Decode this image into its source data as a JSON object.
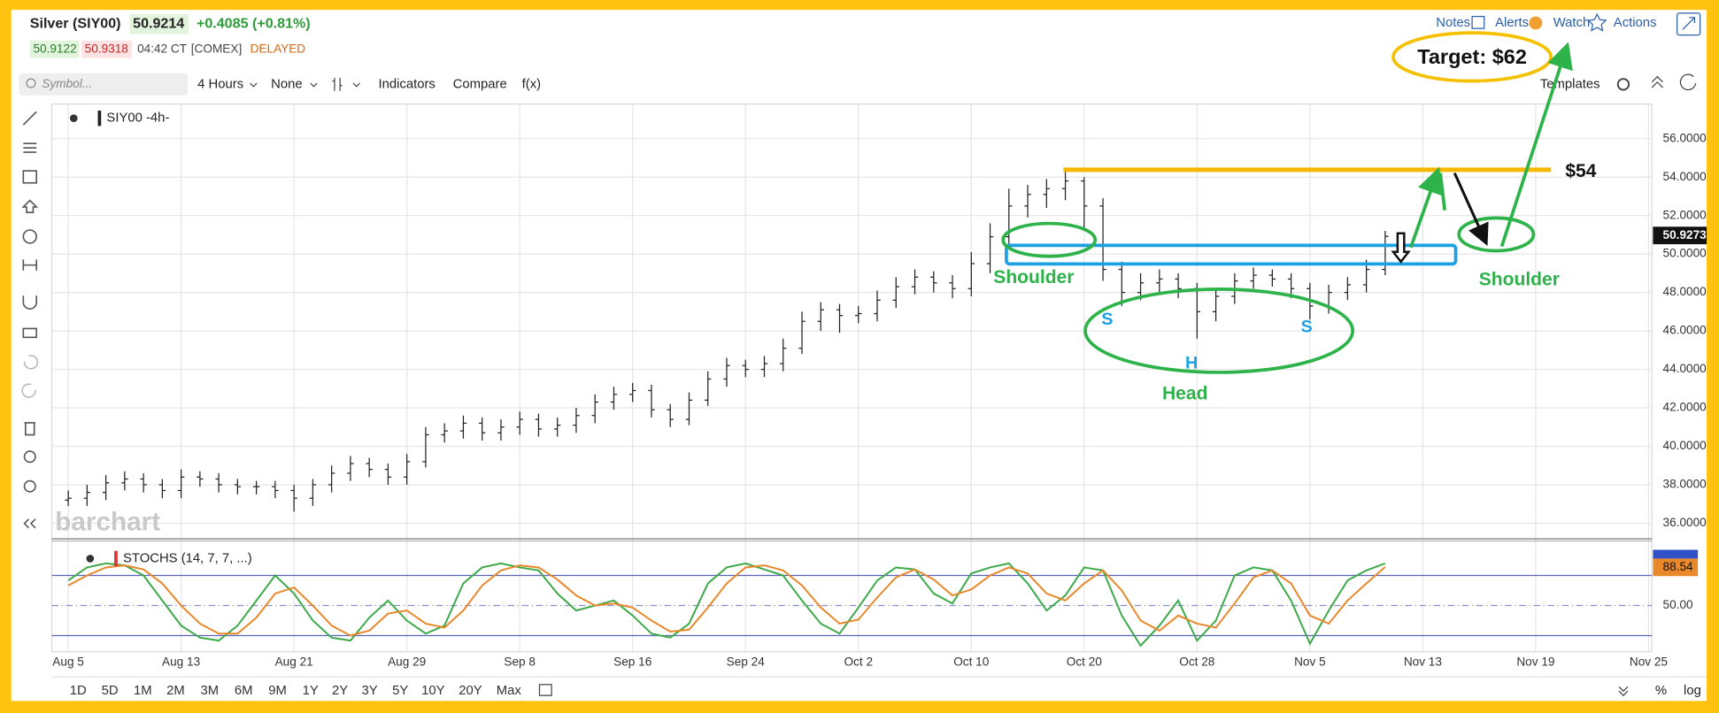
{
  "ui": {
    "symbol_name": "Silver (SIY00)",
    "last": "50.9214",
    "change": "+0.4085 (+0.81%)",
    "bid": "50.9122",
    "ask": "50.9318",
    "time": "04:42 CT",
    "exchange": "[COMEX]",
    "status": "DELAYED",
    "links": [
      "Notes",
      "Alerts",
      "Watch",
      "Actions"
    ],
    "search_placeholder": "Symbol...",
    "toolbar": [
      "4 Hours",
      "None",
      "Indicators",
      "Compare",
      "f(x)"
    ],
    "templates": "Templates",
    "watermark": "barchart",
    "ranges": [
      "1D",
      "5D",
      "1M",
      "2M",
      "3M",
      "6M",
      "9M",
      "1Y",
      "2Y",
      "3Y",
      "5Y",
      "10Y",
      "20Y",
      "Max"
    ],
    "scale_buttons": [
      "%",
      "log"
    ],
    "price_tag": "50.9273",
    "stoch_tag": "88.54"
  },
  "chart_data": [
    {
      "type": "ohlc",
      "legend": "SIY00 -4h-",
      "color": "#222222",
      "grid": true,
      "categories": [
        "Aug 5",
        null,
        null,
        null,
        null,
        null,
        "Aug 13",
        null,
        null,
        null,
        null,
        null,
        "Aug 21",
        null,
        null,
        null,
        null,
        null,
        "Aug 29",
        null,
        null,
        null,
        null,
        null,
        "Sep 8",
        null,
        null,
        null,
        null,
        null,
        "Sep 16",
        null,
        null,
        null,
        null,
        null,
        "Sep 24",
        null,
        null,
        null,
        null,
        null,
        "Oct 2",
        null,
        null,
        null,
        null,
        null,
        "Oct 10",
        null,
        null,
        null,
        null,
        null,
        "Oct 20",
        null,
        null,
        null,
        null,
        null,
        "Oct 28",
        null,
        null,
        null,
        null,
        null,
        "Nov 5",
        null,
        null,
        null,
        null,
        null,
        "Nov 13",
        null,
        null,
        null,
        null,
        null,
        "Nov 19",
        null,
        null,
        null,
        null,
        null,
        "Nov 25"
      ],
      "open": [
        37.2,
        37.3,
        37.6,
        38.1,
        38.3,
        38.0,
        37.7,
        38.4,
        38.3,
        38.0,
        37.9,
        37.9,
        37.7,
        37.3,
        38.0,
        38.6,
        39.1,
        38.8,
        38.4,
        39.2,
        40.6,
        40.8,
        41.2,
        40.7,
        41.0,
        41.4,
        40.9,
        41.1,
        41.6,
        42.3,
        42.7,
        42.9,
        41.9,
        41.4,
        42.4,
        43.5,
        44.2,
        44.0,
        44.3,
        45.1,
        46.5,
        47.1,
        46.8,
        46.9,
        47.6,
        48.3,
        48.8,
        48.5,
        48.2,
        49.5,
        50.9,
        52.5,
        53.1,
        53.4,
        53.8,
        52.5,
        49.2,
        48.0,
        48.5,
        48.7,
        48.2,
        47.0,
        47.8,
        48.6,
        48.9,
        48.7,
        48.2,
        47.3,
        48.0,
        48.4,
        49.2,
        null,
        null,
        null,
        null,
        null,
        null,
        null,
        null,
        null,
        null,
        null,
        null,
        null,
        null
      ],
      "high": [
        37.7,
        38.0,
        38.5,
        38.7,
        38.6,
        38.3,
        38.8,
        38.7,
        38.6,
        38.3,
        38.2,
        38.2,
        38.0,
        38.3,
        39.0,
        39.5,
        39.4,
        39.1,
        39.6,
        41.0,
        41.2,
        41.6,
        41.5,
        41.4,
        41.8,
        41.7,
        41.5,
        42.0,
        42.7,
        43.1,
        43.3,
        43.2,
        42.2,
        42.8,
        43.9,
        44.6,
        44.5,
        44.7,
        45.6,
        47.0,
        47.5,
        47.4,
        47.3,
        48.1,
        48.8,
        49.2,
        49.1,
        48.9,
        50.1,
        51.6,
        53.4,
        53.6,
        53.9,
        54.5,
        54.0,
        52.9,
        49.6,
        49.0,
        49.2,
        49.0,
        48.5,
        48.2,
        49.0,
        49.3,
        49.2,
        49.0,
        48.5,
        48.4,
        48.8,
        49.7,
        51.2,
        null,
        null,
        null,
        null,
        null,
        null,
        null,
        null,
        null,
        null,
        null,
        null,
        null,
        null
      ],
      "low": [
        36.9,
        36.9,
        37.2,
        37.7,
        37.6,
        37.3,
        37.3,
        37.9,
        37.6,
        37.5,
        37.5,
        37.3,
        36.6,
        36.9,
        37.6,
        38.2,
        38.4,
        38.0,
        38.0,
        38.9,
        40.2,
        40.4,
        40.3,
        40.3,
        40.6,
        40.5,
        40.5,
        40.7,
        41.2,
        41.9,
        42.3,
        41.5,
        41.0,
        41.1,
        42.1,
        43.1,
        43.6,
        43.6,
        43.9,
        44.8,
        46.0,
        45.9,
        46.4,
        46.5,
        47.2,
        47.9,
        48.0,
        47.7,
        47.8,
        49.0,
        50.4,
        51.9,
        52.4,
        52.8,
        51.2,
        48.6,
        47.3,
        47.6,
        48.0,
        47.7,
        45.6,
        46.5,
        47.4,
        48.2,
        48.3,
        47.7,
        46.6,
        46.9,
        47.6,
        48.0,
        48.9,
        null,
        null,
        null,
        null,
        null,
        null,
        null,
        null,
        null,
        null,
        null,
        null,
        null,
        null
      ],
      "close": [
        37.3,
        37.6,
        38.1,
        38.3,
        38.0,
        37.7,
        38.4,
        38.3,
        38.0,
        37.9,
        37.9,
        37.7,
        37.3,
        38.0,
        38.6,
        39.1,
        38.8,
        38.4,
        39.2,
        40.6,
        40.8,
        41.2,
        40.7,
        41.0,
        41.4,
        40.9,
        41.1,
        41.6,
        42.3,
        42.7,
        42.9,
        41.9,
        41.4,
        42.4,
        43.5,
        44.2,
        44.0,
        44.3,
        45.1,
        46.5,
        47.1,
        46.8,
        46.9,
        47.6,
        48.3,
        48.8,
        48.5,
        48.2,
        49.5,
        50.9,
        52.5,
        53.1,
        53.4,
        53.8,
        52.5,
        49.2,
        48.0,
        48.5,
        48.7,
        48.2,
        47.0,
        47.8,
        48.6,
        48.9,
        48.7,
        48.2,
        47.3,
        48.0,
        48.4,
        49.2,
        50.92,
        null,
        null,
        null,
        null,
        null,
        null,
        null,
        null,
        null,
        null,
        null,
        null,
        null,
        null
      ],
      "ylim": [
        35.3,
        57.8
      ],
      "yticks": [
        {
          "value": 36,
          "label": "36.0000"
        },
        {
          "value": 38,
          "label": "38.0000"
        },
        {
          "value": 40,
          "label": "40.0000"
        },
        {
          "value": 42,
          "label": "42.0000"
        },
        {
          "value": 44,
          "label": "44.0000"
        },
        {
          "value": 46,
          "label": "46.0000"
        },
        {
          "value": 48,
          "label": "48.0000"
        },
        {
          "value": 50,
          "label": "50.0000"
        },
        {
          "value": 52,
          "label": "52.0000"
        },
        {
          "value": 54,
          "label": "54.0000"
        },
        {
          "value": 56,
          "label": "56.0000"
        }
      ],
      "annotations": {
        "target": "Target: $62",
        "level": "$54",
        "shoulder_left": "Shoulder",
        "shoulder_right": "Shoulder",
        "head": "Head",
        "h": "H",
        "s_left": "S",
        "s_right": "S"
      }
    },
    {
      "type": "line",
      "title": "STOCHS (14, 7, 7, ...)",
      "series": [
        {
          "color": "#3daa4a",
          "values": [
            75,
            88,
            92,
            90,
            80,
            55,
            30,
            18,
            15,
            30,
            55,
            80,
            62,
            35,
            18,
            15,
            38,
            55,
            35,
            22,
            30,
            72,
            88,
            92,
            88,
            85,
            62,
            45,
            50,
            55,
            40,
            22,
            18,
            32,
            72,
            88,
            92,
            86,
            80,
            55,
            32,
            22,
            48,
            75,
            88,
            86,
            62,
            52,
            82,
            88,
            92,
            72,
            45,
            60,
            88,
            85,
            40,
            10,
            30,
            55,
            15,
            35,
            80,
            88,
            85,
            55,
            12,
            45,
            75,
            85,
            92,
            null,
            null,
            null,
            null,
            null,
            null,
            null,
            null,
            null,
            null,
            null,
            null,
            null,
            null
          ]
        },
        {
          "color": "#e8882a",
          "values": [
            70,
            80,
            88,
            90,
            86,
            72,
            50,
            32,
            22,
            22,
            38,
            62,
            68,
            50,
            30,
            20,
            25,
            42,
            45,
            32,
            28,
            45,
            70,
            85,
            90,
            88,
            76,
            60,
            50,
            52,
            48,
            35,
            24,
            26,
            48,
            72,
            88,
            90,
            85,
            70,
            48,
            32,
            36,
            58,
            78,
            86,
            76,
            60,
            66,
            80,
            88,
            82,
            62,
            55,
            72,
            85,
            65,
            35,
            25,
            40,
            32,
            28,
            52,
            78,
            85,
            72,
            40,
            32,
            55,
            72,
            88.54,
            null,
            null,
            null,
            null,
            null,
            null,
            null,
            null,
            null,
            null,
            null,
            null,
            null,
            null
          ]
        }
      ],
      "ylim": [
        4,
        111
      ],
      "yticks": [
        {
          "value": 50,
          "label": "50.00"
        }
      ],
      "levels": [
        20,
        80
      ]
    }
  ]
}
